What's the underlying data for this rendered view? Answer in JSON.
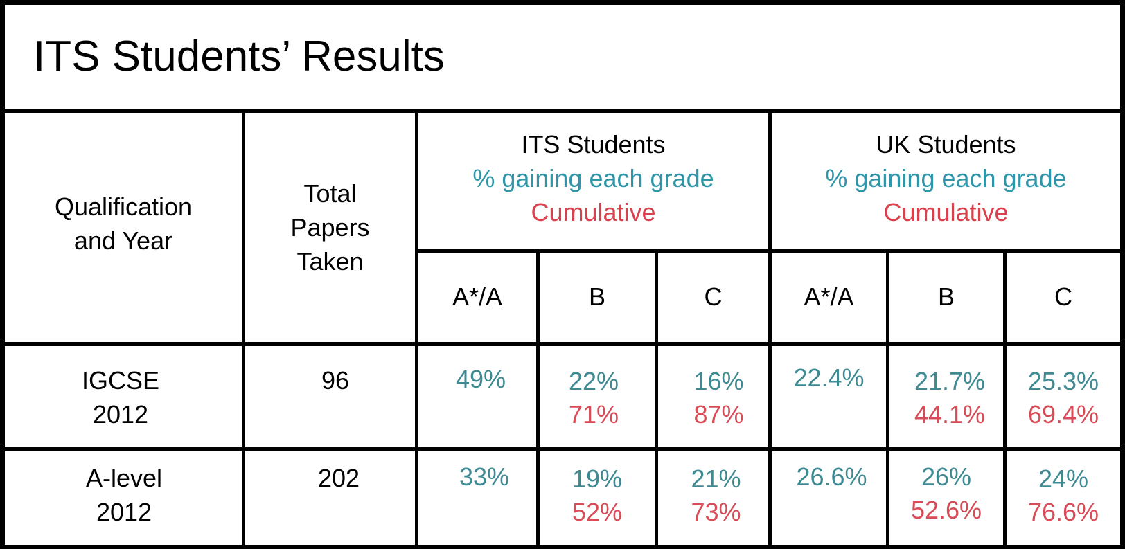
{
  "title": "ITS Students’ Results",
  "header": {
    "qualification": [
      "Qualification",
      "and Year"
    ],
    "total": [
      "Total",
      "Papers",
      "Taken"
    ],
    "its": {
      "name": "ITS Students",
      "sub": "% gaining each grade",
      "cum": "Cumulative"
    },
    "uk": {
      "name": "UK Students",
      "sub": "% gaining each grade",
      "cum": "Cumulative"
    },
    "grades": [
      "A*/A",
      "B",
      "C",
      "A*/A",
      "B",
      "C"
    ]
  },
  "rows": [
    {
      "qual": [
        "IGCSE",
        "2012"
      ],
      "total": "96",
      "its": {
        "a": "49%",
        "b": "22%",
        "b_cum": "71%",
        "c": "16%",
        "c_cum": "87%"
      },
      "uk": {
        "a": "22.4%",
        "b": "21.7%",
        "b_cum": "44.1%",
        "c": "25.3%",
        "c_cum": "69.4%"
      }
    },
    {
      "qual": [
        "A-level",
        "2012"
      ],
      "total": "202",
      "its": {
        "a": "33%",
        "b": "19%",
        "b_cum": "52%",
        "c": "21%",
        "c_cum": "73%"
      },
      "uk": {
        "a": "26.6%",
        "b": "26%",
        "b_cum": "52.6%",
        "c": "24%",
        "c_cum": "76.6%"
      }
    }
  ],
  "colors": {
    "heading_teal": "#2e96a8",
    "heading_red": "#d9424c",
    "value_teal": "#3e8a93",
    "value_red": "#d84c57"
  }
}
